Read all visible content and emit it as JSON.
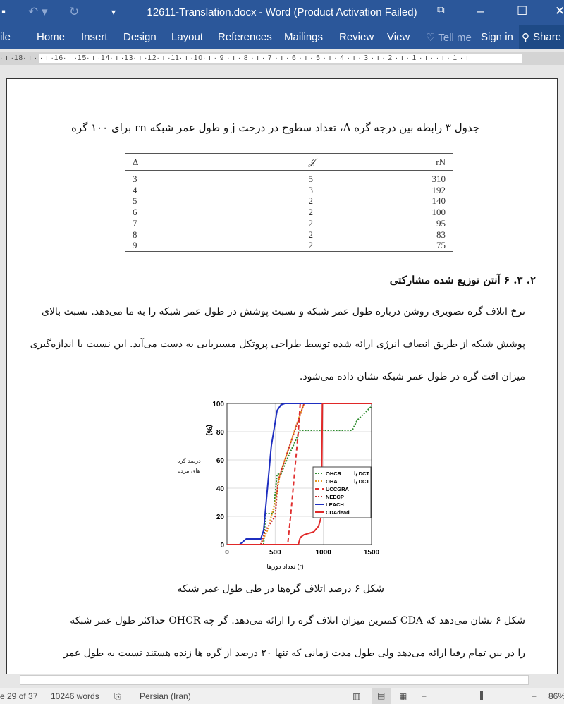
{
  "window": {
    "title": "12611-Translation.docx - Word (Product Activation Failed)"
  },
  "ribbon": {
    "tabs": [
      "ile",
      "Home",
      "Insert",
      "Design",
      "Layout",
      "References",
      "Mailings",
      "Review",
      "View"
    ],
    "tell_me": "Tell me",
    "sign_in": "Sign in",
    "share": "Share"
  },
  "ruler": {
    "labels": "· ı ·18· ı ·  · ı ·16· ı ·15· ı ·14· ı ·13· ı ·12· ı ·11· ı ·10· ı · 9 · ı · 8 · ı · 7 · ı · 6 · ı · 5 · ı · 4 · ı · 3 · ı · 2 · ı · 1 · ı ·   · ı · 1 · ı"
  },
  "document": {
    "table_caption": "جدول ۳ رابطه بین درجه گره Δ، تعداد سطوح در درخت j و طول عمر شبکه rn برای ۱۰۰ گره",
    "table": {
      "headers": [
        "Δ",
        "𝒥",
        "rN"
      ],
      "rows": [
        [
          "3",
          "5",
          "310"
        ],
        [
          "4",
          "3",
          "192"
        ],
        [
          "5",
          "2",
          "140"
        ],
        [
          "6",
          "2",
          "100"
        ],
        [
          "7",
          "2",
          "95"
        ],
        [
          "8",
          "2",
          "83"
        ],
        [
          "9",
          "2",
          "75"
        ]
      ]
    },
    "heading": "۲. ۳. ۶ آنتن توزیع شده مشارکتی",
    "para1": [
      "نرخ اتلاف گره تصویری روشن درباره طول عمر شبکه و نسبت پوشش در طول عمر شبکه را به ما می‌دهد. نسبت بالای",
      "پوشش شبکه از طریق انصاف انرژی ارائه شده توسط طراحی پروتکل مسیریابی به دست می‌آید. این نسبت با اندازه‌گیری",
      "میزان افت گره در طول عمر شبکه نشان داده می‌شود."
    ],
    "figure_caption": "شکل ۶ درصد اتلاف گره‌ها در طی طول عمر شبکه",
    "para2": [
      "شکل ۶ نشان می‌دهد که CDA کمترین میزان اتلاف گره را ارائه می‌دهد. گر چه OHCR حداکثر طول عمر شبکه",
      "را در بین تمام رقبا ارائه می‌دهد ولی طول مدت زمانی که تنها ۲۰ درصد از گره ها زنده هستند نسبت به طول عمر"
    ]
  },
  "chart_data": {
    "type": "line",
    "xlabel": "تعداد دورها (r)",
    "ylabel": "درصد گره های مرده",
    "ylabel_unit": "(%)",
    "xlim": [
      0,
      1500
    ],
    "ylim": [
      0,
      100
    ],
    "xticks": [
      "0",
      "500",
      "1000",
      "1500"
    ],
    "yticks": [
      "0",
      "20",
      "40",
      "60",
      "80",
      "100"
    ],
    "grid": true,
    "legend_placement": "right",
    "series": [
      {
        "name": "OHCR",
        "suffix": "با DCT",
        "color": "#2e8b2e",
        "dash": "dot",
        "x": [
          0,
          380,
          400,
          480,
          520,
          560,
          620,
          720,
          750,
          1300,
          1350,
          1500
        ],
        "y": [
          0,
          0,
          22,
          22,
          50,
          50,
          60,
          75,
          81,
          81,
          88,
          98
        ]
      },
      {
        "name": "OHA",
        "suffix": "با DCT",
        "color": "#e89a20",
        "dash": "dot",
        "x": [
          0,
          350,
          420,
          500,
          550,
          650,
          720,
          800
        ],
        "y": [
          0,
          0,
          10,
          30,
          50,
          70,
          85,
          100
        ]
      },
      {
        "name": "UCCGRA",
        "color": "#e03030",
        "dash": "dash",
        "x": [
          0,
          630,
          660,
          700,
          740,
          760,
          1500
        ],
        "y": [
          0,
          0,
          20,
          50,
          80,
          100,
          100
        ]
      },
      {
        "name": "NEECP",
        "color": "#c82828",
        "dash": "dot",
        "x": [
          0,
          350,
          400,
          500,
          530,
          600,
          700,
          800
        ],
        "y": [
          0,
          0,
          10,
          20,
          45,
          60,
          80,
          100
        ]
      },
      {
        "name": "LEACH",
        "color": "#1f2fc0",
        "dash": "solid",
        "x": [
          0,
          130,
          200,
          350,
          380,
          420,
          460,
          520,
          560,
          600,
          1500
        ],
        "y": [
          0,
          0,
          4,
          4,
          10,
          40,
          70,
          95,
          99,
          100,
          100
        ]
      },
      {
        "name": "CDAdead",
        "color": "#e02828",
        "dash": "solid",
        "x": [
          0,
          740,
          760,
          800,
          900,
          950,
          980,
          990,
          1500
        ],
        "y": [
          0,
          0,
          5,
          7,
          9,
          13,
          20,
          100,
          100
        ]
      }
    ]
  },
  "status": {
    "page": "e 29 of 37",
    "words": "10246 words",
    "language": "Persian (Iran)",
    "zoom": "86%",
    "zoom_level": 86
  },
  "colors": {
    "brand": "#2b579a"
  }
}
